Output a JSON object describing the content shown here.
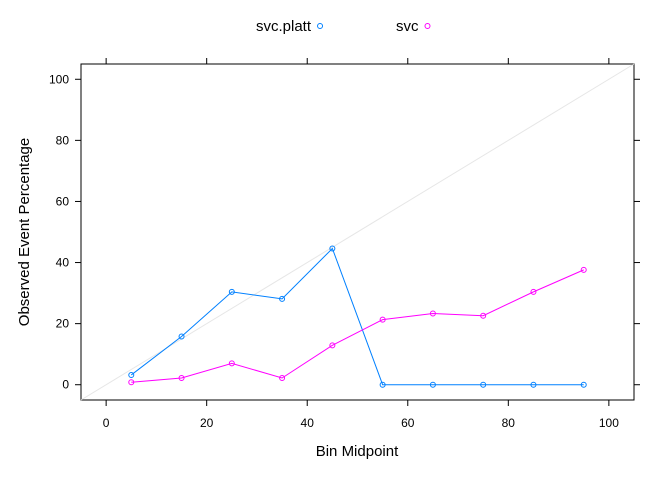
{
  "chart_data": {
    "type": "line",
    "xlabel": "Bin Midpoint",
    "ylabel": "Observed Event Percentage",
    "xlim": [
      -5,
      105
    ],
    "ylim": [
      -5,
      105
    ],
    "xticks": [
      0,
      20,
      40,
      60,
      80,
      100
    ],
    "yticks": [
      0,
      20,
      40,
      60,
      80,
      100
    ],
    "grid": false,
    "legend_position": "top",
    "reference_line": {
      "from": [
        0,
        0
      ],
      "to": [
        100,
        100
      ],
      "color": "#e6e6e6"
    },
    "x": [
      5,
      15,
      25,
      35,
      45,
      55,
      65,
      75,
      85,
      95
    ],
    "series": [
      {
        "name": "svc.platt",
        "color": "#0080ff",
        "marker": "circle-open",
        "values": [
          3.2,
          15.8,
          30.4,
          28.1,
          44.6,
          0,
          0,
          0,
          0,
          0
        ]
      },
      {
        "name": "svc",
        "color": "#ff00ff",
        "marker": "circle-open",
        "values": [
          0.8,
          2.2,
          7.0,
          2.2,
          12.9,
          21.3,
          23.3,
          22.6,
          30.4,
          37.6
        ]
      }
    ]
  }
}
